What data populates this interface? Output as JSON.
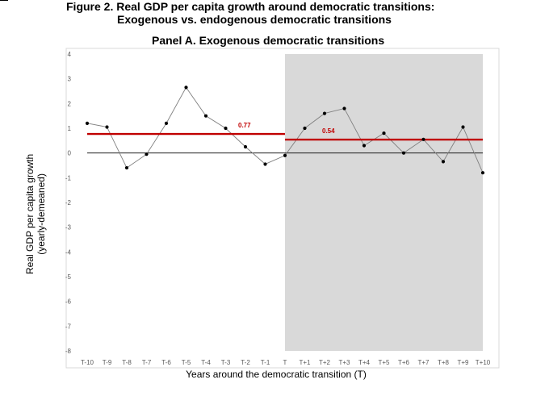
{
  "figure": {
    "title_line1": "Figure 2. Real GDP per capita growth around democratic transitions:",
    "title_line2": "Exogenous vs. endogenous democratic transitions",
    "panel_title": "Panel A. Exogenous democratic transitions"
  },
  "chart_data": {
    "type": "line",
    "xlabel": "Years around the democratic transition (T)",
    "ylabel_line1": "Real GDP per capita growth",
    "ylabel_line2": "(yearly-demeaned)",
    "categories": [
      "T-10",
      "T-9",
      "T-8",
      "T-7",
      "T-6",
      "T-5",
      "T-4",
      "T-3",
      "T-2",
      "T-1",
      "T",
      "T+1",
      "T+2",
      "T+3",
      "T+4",
      "T+5",
      "T+6",
      "T+7",
      "T+8",
      "T+9",
      "T+10"
    ],
    "values": [
      1.2,
      1.05,
      -0.6,
      -0.05,
      1.2,
      2.65,
      1.5,
      1.0,
      0.25,
      -0.45,
      -0.1,
      1.0,
      1.6,
      1.8,
      0.3,
      0.8,
      0.0,
      0.55,
      -0.35,
      1.05,
      -0.8
    ],
    "ylim": [
      -8,
      4
    ],
    "yticks": [
      4,
      3,
      2,
      1,
      0,
      -1,
      -2,
      -3,
      -4,
      -5,
      -6,
      -7,
      -8
    ],
    "grid": false,
    "shaded_region": {
      "from": "T",
      "to": "T+10"
    },
    "averages": [
      {
        "from": "T-10",
        "to": "T",
        "value": 0.77,
        "label": "0.77"
      },
      {
        "from": "T",
        "to": "T+10",
        "value": 0.54,
        "label": "0.54"
      }
    ],
    "colors": {
      "line": "#7f7f7f",
      "marker": "#000000",
      "average": "#c00000",
      "shade": "#d9d9d9",
      "zero": "#000000"
    }
  }
}
